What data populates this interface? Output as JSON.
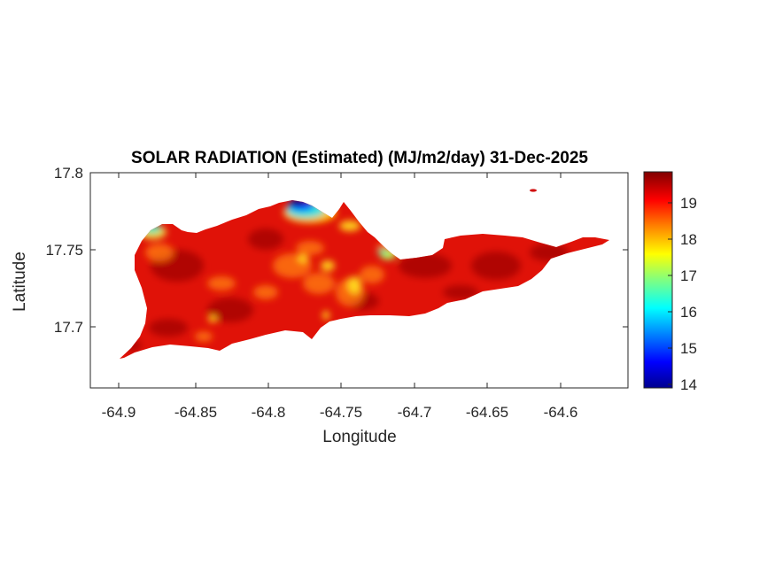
{
  "title": "SOLAR RADIATION (Estimated) (MJ/m2/day) 31-Dec-2025",
  "xlabel": "Longitude",
  "ylabel": "Latitude",
  "xticks": [
    "-64.9",
    "-64.85",
    "-64.8",
    "-64.75",
    "-64.7",
    "-64.65",
    "-64.6"
  ],
  "yticks": [
    "17.8",
    "17.75",
    "17.7"
  ],
  "colorbar": {
    "ticks": [
      "19",
      "18",
      "17",
      "16",
      "15",
      "14"
    ],
    "colormap": "jet",
    "range": [
      13.9,
      19.9
    ]
  },
  "chart_data": {
    "type": "heatmap",
    "title": "SOLAR RADIATION (Estimated) (MJ/m2/day) 31-Dec-2025",
    "xlabel": "Longitude",
    "ylabel": "Latitude",
    "xlim": [
      -64.92,
      -64.54
    ],
    "ylim": [
      17.658,
      17.8
    ],
    "clim": [
      13.9,
      19.9
    ],
    "colorbar_ticks": [
      14,
      15,
      16,
      17,
      18,
      19
    ],
    "grid": false,
    "typical_value": 19.2,
    "low_value_areas": [
      {
        "region": "north shore near -64.77, 17.775",
        "min_value": 14.0
      },
      {
        "region": "northwest tip near -64.88, 17.762",
        "min_value": 16.5
      },
      {
        "region": "north coast near -64.72, 17.748",
        "min_value": 17.0
      }
    ]
  }
}
